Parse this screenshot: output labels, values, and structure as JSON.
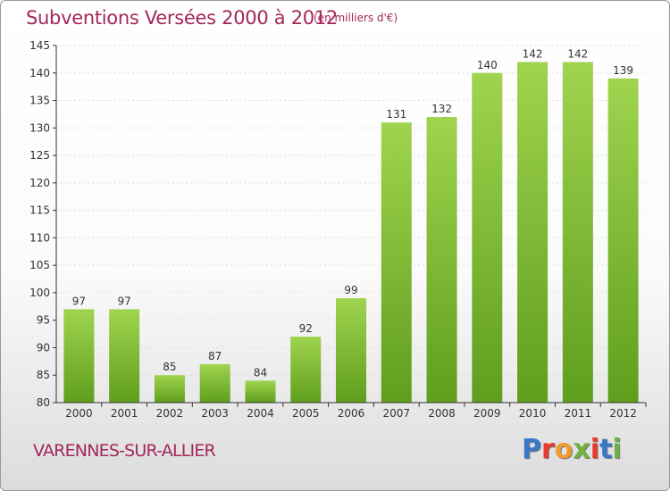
{
  "title": "Subventions Versées 2000 à 2012",
  "unit": "(en milliers d'€)",
  "place": "VARENNES-SUR-ALLIER",
  "logo": {
    "text": "Proxiti",
    "letter_colors": [
      "#3a79c9",
      "#e8392b",
      "#f09a2a",
      "#6cb33f",
      "#e8392b",
      "#3a79c9",
      "#6cb33f"
    ]
  },
  "colors": {
    "bar_top": "#9fd44f",
    "bar_bottom": "#5f9e1d",
    "text": "#a3275a",
    "axis": "#333333",
    "grid": "#dddddd"
  },
  "chart_data": {
    "type": "bar",
    "categories": [
      "2000",
      "2001",
      "2002",
      "2003",
      "2004",
      "2005",
      "2006",
      "2007",
      "2008",
      "2009",
      "2010",
      "2011",
      "2012"
    ],
    "values": [
      97,
      97,
      85,
      87,
      84,
      92,
      99,
      131,
      132,
      140,
      142,
      142,
      139
    ],
    "ylim": [
      80,
      145
    ],
    "yticks": [
      80,
      85,
      90,
      95,
      100,
      105,
      110,
      115,
      120,
      125,
      130,
      135,
      140,
      145
    ],
    "grid": "horizontal dashed",
    "data_labels": true
  }
}
